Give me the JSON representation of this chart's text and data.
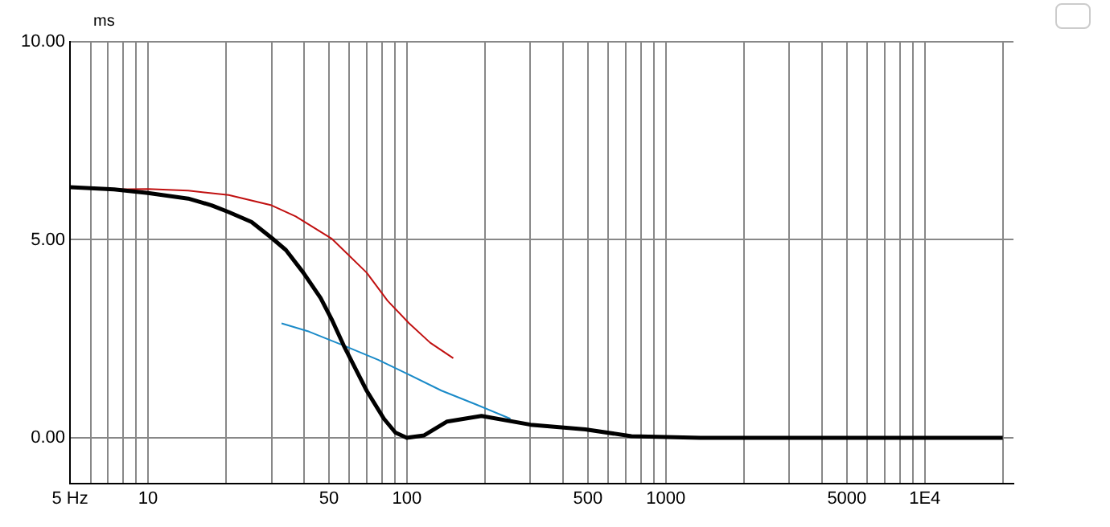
{
  "chart_data": {
    "type": "line",
    "ylabel": "ms",
    "log": "x",
    "grid": true,
    "legend": false,
    "marker": "none",
    "line_style": "solid",
    "xlim": [
      5,
      22000
    ],
    "ylim": [
      -1.15,
      10
    ],
    "xticks": [
      {
        "value": 5,
        "label": "5 Hz"
      },
      {
        "value": 6,
        "label": null
      },
      {
        "value": 7,
        "label": null
      },
      {
        "value": 8,
        "label": null
      },
      {
        "value": 9,
        "label": null
      },
      10,
      {
        "value": 20,
        "label": null
      },
      {
        "value": 30,
        "label": null
      },
      {
        "value": 40,
        "label": null
      },
      50,
      {
        "value": 60,
        "label": null
      },
      {
        "value": 70,
        "label": null
      },
      {
        "value": 80,
        "label": null
      },
      {
        "value": 90,
        "label": null
      },
      100,
      {
        "value": 200,
        "label": null
      },
      {
        "value": 300,
        "label": null
      },
      {
        "value": 400,
        "label": null
      },
      500,
      {
        "value": 600,
        "label": null
      },
      {
        "value": 700,
        "label": null
      },
      {
        "value": 800,
        "label": null
      },
      {
        "value": 900,
        "label": null
      },
      1000,
      {
        "value": 2000,
        "label": null
      },
      {
        "value": 3000,
        "label": null
      },
      {
        "value": 4000,
        "label": null
      },
      5000,
      {
        "value": 6000,
        "label": null
      },
      {
        "value": 7000,
        "label": null
      },
      {
        "value": 8000,
        "label": null
      },
      {
        "value": 9000,
        "label": null
      },
      {
        "value": 10000,
        "label": "1E4"
      },
      {
        "value": 20000,
        "label": null
      }
    ],
    "yticks": [
      {
        "value": 0,
        "label": "0.00"
      },
      {
        "value": 5,
        "label": "5.00"
      },
      {
        "value": 10,
        "label": "10.00"
      }
    ],
    "series": [
      {
        "color": "#000000",
        "x": [
          5,
          7.4,
          10,
          14.3,
          17.6,
          20.5,
          25.1,
          30,
          34.1,
          39.8,
          46.4,
          51.4,
          57,
          63.1,
          69.9,
          81.5,
          90.3,
          100,
          116.6,
          143,
          194,
          300,
          489,
          736,
          1360,
          20000
        ],
        "values": [
          6.33,
          6.27,
          6.18,
          6.04,
          5.87,
          5.7,
          5.45,
          5.05,
          4.74,
          4.17,
          3.53,
          2.97,
          2.33,
          1.76,
          1.19,
          0.48,
          0.13,
          0,
          0.06,
          0.41,
          0.55,
          0.33,
          0.21,
          0.04,
          0,
          0
        ]
      },
      {
        "color": "#c01010",
        "x": [
          7.4,
          10,
          14.3,
          20.5,
          30,
          37.2,
          51.4,
          69.9,
          84.2,
          102,
          123,
          151
        ],
        "values": [
          6.27,
          6.28,
          6.24,
          6.13,
          5.87,
          5.59,
          5.02,
          4.17,
          3.46,
          2.89,
          2.4,
          2.01
        ]
      },
      {
        "color": "#1a8ac8",
        "x": [
          32.8,
          41.9,
          57,
          77.4,
          100,
          136,
          185,
          251
        ],
        "values": [
          2.89,
          2.68,
          2.33,
          1.97,
          1.62,
          1.19,
          0.84,
          0.48
        ]
      }
    ]
  }
}
